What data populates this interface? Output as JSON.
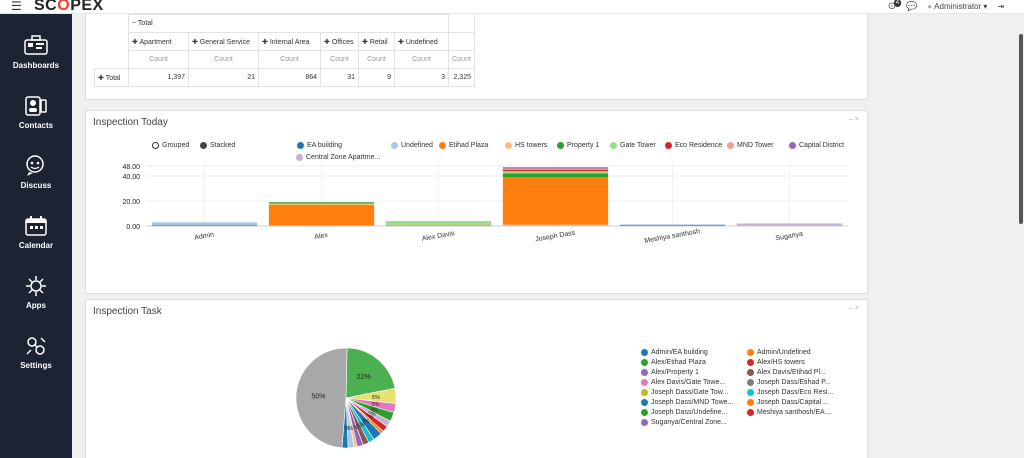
{
  "app": {
    "logo": "SCOPEX",
    "logo_tagline": "",
    "user": "Administrator",
    "notifications": "4"
  },
  "sidebar": {
    "items": [
      {
        "label": "Dashboards",
        "icon": "dashboard-icon"
      },
      {
        "label": "Contacts",
        "icon": "contacts-icon"
      },
      {
        "label": "Discuss",
        "icon": "discuss-icon"
      },
      {
        "label": "Calendar",
        "icon": "calendar-icon"
      },
      {
        "label": "Apps",
        "icon": "apps-icon"
      },
      {
        "label": "Settings",
        "icon": "settings-icon"
      }
    ]
  },
  "pivot": {
    "total_header": "Total",
    "columns": [
      "Apartment",
      "General Service",
      "Internal Area",
      "Offices",
      "Retail",
      "Undefined"
    ],
    "measure": "Count",
    "row_label": "Total",
    "values": [
      "1,397",
      "21",
      "864",
      "31",
      "9",
      "3",
      "2,325"
    ]
  },
  "inspection_today": {
    "title": "Inspection Today",
    "controls": "– ×",
    "grouped_label": "Grouped",
    "stacked_label": "Stacked"
  },
  "inspection_task": {
    "title": "Inspection Task",
    "controls": "– ×",
    "legend": [
      {
        "label": "Admin/EA building",
        "color": "#1f77b4"
      },
      {
        "label": "Admin/Undefined",
        "color": "#ff7f0e"
      },
      {
        "label": "Alex/Etihad Plaza",
        "color": "#2ca02c"
      },
      {
        "label": "Alex/HS towers",
        "color": "#d62728"
      },
      {
        "label": "Alex/Property 1",
        "color": "#9467bd"
      },
      {
        "label": "Alex Davis/Etihad Pl...",
        "color": "#8c564b"
      },
      {
        "label": "Alex Davis/Gate Towe...",
        "color": "#e377c2"
      },
      {
        "label": "Joseph Dass/Etihad P...",
        "color": "#7f7f7f"
      },
      {
        "label": "Joseph Dass/Gate Tow...",
        "color": "#bcbd22"
      },
      {
        "label": "Joseph Dass/Eco Resi...",
        "color": "#17becf"
      },
      {
        "label": "Joseph Dass/MND Towe...",
        "color": "#1f77b4"
      },
      {
        "label": "Joseph Dass/Capital ...",
        "color": "#ff7f0e"
      },
      {
        "label": "Joseph Dass/Undefine...",
        "color": "#2ca02c"
      },
      {
        "label": "Meshiya santhosh/EA ...",
        "color": "#d62728"
      },
      {
        "label": "Suganya/Central Zone...",
        "color": "#9467bd"
      }
    ]
  },
  "chart_data": [
    {
      "type": "bar",
      "stacked": true,
      "title": "Inspection Today",
      "categories": [
        "Admin",
        "Alex",
        "Alex Davis",
        "Joseph Dass",
        "Meshiya santhosh",
        "Suganya"
      ],
      "y_ticks": [
        "0.00",
        "20.00",
        "40.00",
        "48.00"
      ],
      "ylim": [
        0,
        48
      ],
      "series": [
        {
          "name": "EA building",
          "color": "#1f77b4",
          "values": [
            1,
            0,
            0,
            0,
            1,
            0
          ]
        },
        {
          "name": "Undefined",
          "color": "#aec7e8",
          "values": [
            2,
            0,
            0,
            1,
            0,
            0
          ]
        },
        {
          "name": "Etihad Plaza",
          "color": "#ff7f0e",
          "values": [
            0,
            17,
            1,
            38,
            0,
            0
          ]
        },
        {
          "name": "HS towers",
          "color": "#ffbb78",
          "values": [
            0,
            1,
            0,
            0,
            0,
            0
          ]
        },
        {
          "name": "Property 1",
          "color": "#2ca02c",
          "values": [
            0,
            1,
            0,
            3,
            0,
            0
          ]
        },
        {
          "name": "Gate Tower",
          "color": "#98df8a",
          "values": [
            0,
            0,
            3,
            2,
            0,
            0
          ]
        },
        {
          "name": "Eco Residence",
          "color": "#d62728",
          "values": [
            0,
            0,
            0,
            1,
            0,
            0
          ]
        },
        {
          "name": "MND Tower",
          "color": "#ff9896",
          "values": [
            0,
            0,
            0,
            1,
            0,
            0
          ]
        },
        {
          "name": "Capital District",
          "color": "#9467bd",
          "values": [
            0,
            0,
            0,
            1,
            0,
            0
          ]
        },
        {
          "name": "Central Zone Apartme...",
          "color": "#c5b0d5",
          "values": [
            0,
            0,
            0,
            0,
            0,
            2
          ]
        }
      ]
    },
    {
      "type": "pie",
      "title": "Inspection Task",
      "slices": [
        {
          "label": "Joseph Dass/Etihad P...",
          "value": 50,
          "color": "#a8a8a8",
          "text": "50%"
        },
        {
          "label": "Alex/Etihad Plaza",
          "value": 22,
          "color": "#4caf50",
          "text": "22%"
        },
        {
          "label": "Joseph Dass/Gate Tow...",
          "value": 5,
          "color": "#e8e070",
          "text": "5%"
        },
        {
          "label": "Alex Davis/Gate Towe...",
          "value": 3,
          "color": "#e377c2",
          "text": "3%"
        },
        {
          "label": "Joseph Dass/Undefine...",
          "value": 3,
          "color": "#2ca02c",
          "text": "3%"
        },
        {
          "label": "Suganya/Central Zone...",
          "value": 2,
          "color": "#c5b0d5",
          "text": "2%"
        },
        {
          "label": "Meshiya santhosh/EA ...",
          "value": 2,
          "color": "#d62728",
          "text": "2%"
        },
        {
          "label": "Joseph Dass/Capital ...",
          "value": 1,
          "color": "#ff7f0e",
          "text": "1%"
        },
        {
          "label": "Joseph Dass/MND Towe...",
          "value": 3,
          "color": "#1f77b4",
          "text": "3%"
        },
        {
          "label": "Joseph Dass/Eco Resi...",
          "value": 2,
          "color": "#17becf",
          "text": "2%"
        },
        {
          "label": "Alex Davis/Etihad Pl...",
          "value": 2,
          "color": "#8c564b",
          "text": "2%"
        },
        {
          "label": "Alex/Property 1",
          "value": 2,
          "color": "#9467bd",
          "text": "2%"
        },
        {
          "label": "Alex/HS towers",
          "value": 1,
          "color": "#ffbb78",
          "text": "1%"
        },
        {
          "label": "Admin/Undefined",
          "value": 2,
          "color": "#aec7e8",
          "text": "2%"
        },
        {
          "label": "Admin/EA building",
          "value": 2,
          "color": "#1f77b4",
          "text": "2%"
        }
      ]
    }
  ]
}
